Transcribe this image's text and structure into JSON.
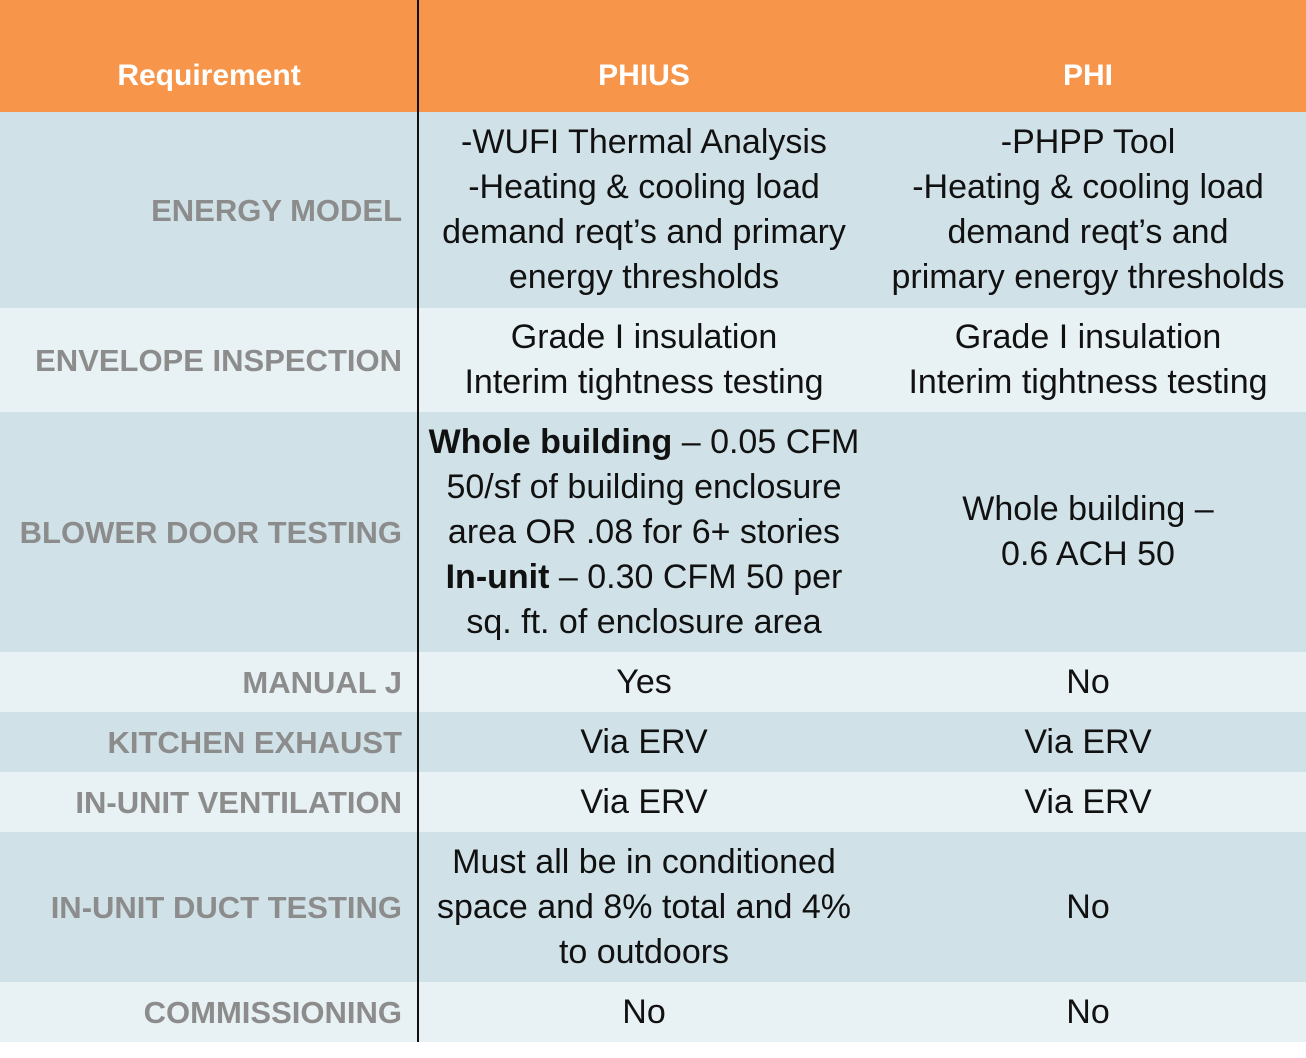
{
  "header": {
    "requirement": "Requirement",
    "phius": "PHIUS",
    "phi": "PHI"
  },
  "colors": {
    "header_bg": "#f7964b",
    "band_dark": "#d0e2e8",
    "band_light": "#e8f1f3",
    "label_text": "#8c8c8c"
  },
  "rows": [
    {
      "label": "ENERGY MODEL",
      "phius": [
        "-WUFI Thermal Analysis",
        "-Heating & cooling load",
        "demand reqt’s and primary",
        "energy thresholds"
      ],
      "phi": [
        "-PHPP Tool",
        "-Heating & cooling load",
        "demand reqt’s and",
        "primary energy thresholds"
      ]
    },
    {
      "label": "ENVELOPE INSPECTION",
      "phius": [
        "Grade I insulation",
        "Interim tightness testing"
      ],
      "phi": [
        "Grade I insulation",
        "Interim tightness testing"
      ]
    },
    {
      "label": "BLOWER DOOR TESTING",
      "phius": {
        "l1_bold": "Whole building",
        "l1_rest": " – 0.05 CFM",
        "l2": "50/sf of building enclosure",
        "l3": "area OR .08 for 6+ stories",
        "l4_bold": "In-unit",
        "l4_rest": " – 0.30 CFM 50 per",
        "l5": "sq. ft. of enclosure area"
      },
      "phi": [
        "Whole building –",
        "0.6 ACH 50"
      ]
    },
    {
      "label": "MANUAL J",
      "phius": "Yes",
      "phi": "No"
    },
    {
      "label": "KITCHEN EXHAUST",
      "phius": "Via ERV",
      "phi": "Via ERV"
    },
    {
      "label": "IN-UNIT VENTILATION",
      "phius": "Via ERV",
      "phi": "Via ERV"
    },
    {
      "label": "IN-UNIT DUCT TESTING",
      "phius": [
        "Must all be in conditioned",
        "space and 8% total and 4%",
        "to outdoors"
      ],
      "phi": "No"
    },
    {
      "label": "COMMISSIONING",
      "phius": "No",
      "phi": "No"
    }
  ]
}
